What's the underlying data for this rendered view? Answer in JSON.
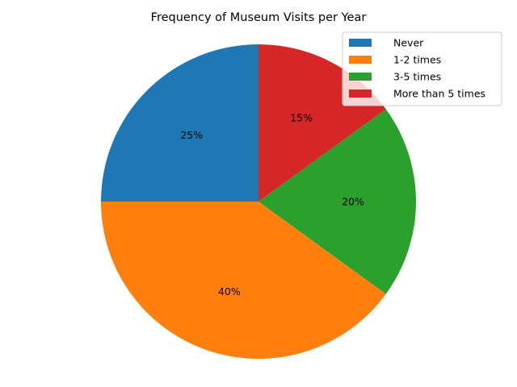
{
  "chart_data": {
    "type": "pie",
    "title": "Frequency of Museum Visits per Year",
    "categories": [
      "Never",
      "1-2 times",
      "3-5 times",
      "More than 5 times"
    ],
    "values": [
      25,
      40,
      20,
      15
    ],
    "value_labels": [
      "25%",
      "40%",
      "20%",
      "15%"
    ],
    "colors": [
      "#1f77b4",
      "#ff7f0e",
      "#2ca02c",
      "#d62728"
    ],
    "start_angle_deg": 90,
    "direction": "counterclockwise",
    "legend_position": "top-right"
  }
}
